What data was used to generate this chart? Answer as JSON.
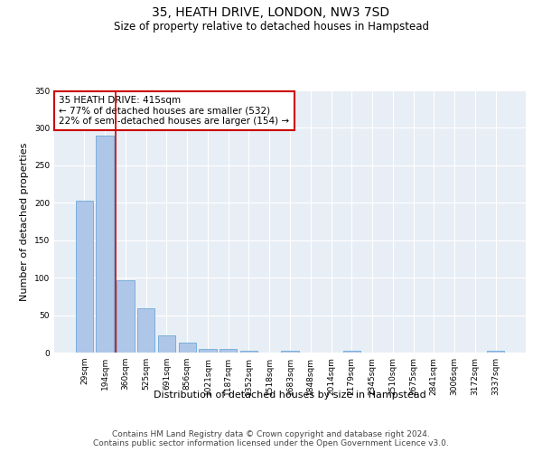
{
  "title": "35, HEATH DRIVE, LONDON, NW3 7SD",
  "subtitle": "Size of property relative to detached houses in Hampstead",
  "xlabel": "Distribution of detached houses by size in Hampstead",
  "ylabel": "Number of detached properties",
  "categories": [
    "29sqm",
    "194sqm",
    "360sqm",
    "525sqm",
    "691sqm",
    "856sqm",
    "1021sqm",
    "1187sqm",
    "1352sqm",
    "1518sqm",
    "1683sqm",
    "1848sqm",
    "2014sqm",
    "2179sqm",
    "2345sqm",
    "2510sqm",
    "2675sqm",
    "2841sqm",
    "3006sqm",
    "3172sqm",
    "3337sqm"
  ],
  "values": [
    203,
    290,
    97,
    59,
    23,
    13,
    5,
    5,
    3,
    0,
    2,
    0,
    0,
    2,
    0,
    0,
    0,
    0,
    0,
    0,
    2
  ],
  "bar_color": "#aec6e8",
  "bar_edge_color": "#5a9fd4",
  "bar_edge_width": 0.5,
  "vline_pos": 1.5,
  "vline_color": "#cc0000",
  "annotation_text": "35 HEATH DRIVE: 415sqm\n← 77% of detached houses are smaller (532)\n22% of semi-detached houses are larger (154) →",
  "annotation_box_color": "#ffffff",
  "annotation_box_edge_color": "#cc0000",
  "annotation_fontsize": 7.5,
  "ylim": [
    0,
    350
  ],
  "yticks": [
    0,
    50,
    100,
    150,
    200,
    250,
    300,
    350
  ],
  "bg_color": "#e8eef5",
  "grid_color": "#ffffff",
  "title_fontsize": 10,
  "subtitle_fontsize": 8.5,
  "xlabel_fontsize": 8,
  "ylabel_fontsize": 8,
  "tick_fontsize": 6.5,
  "footer_line1": "Contains HM Land Registry data © Crown copyright and database right 2024.",
  "footer_line2": "Contains public sector information licensed under the Open Government Licence v3.0.",
  "footer_fontsize": 6.5
}
